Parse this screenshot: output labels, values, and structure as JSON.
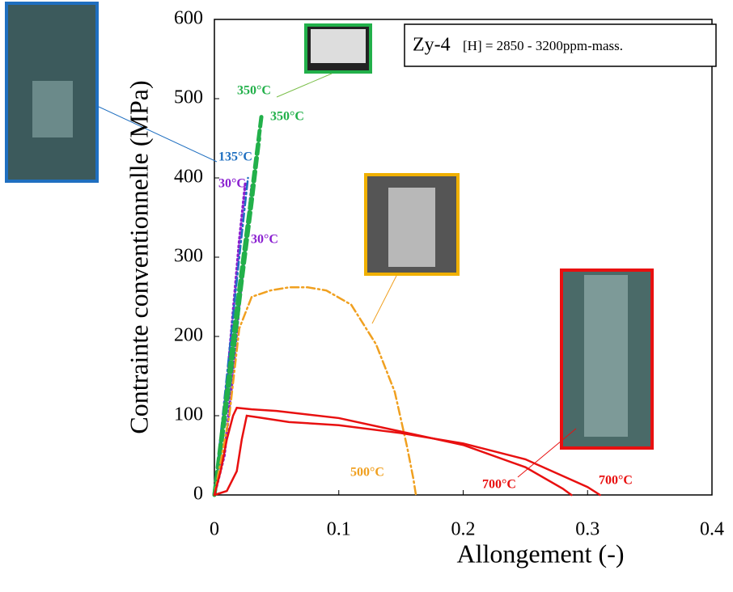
{
  "chart_data": {
    "type": "line",
    "xlabel": "Allongement (-)",
    "ylabel": "Contrainte conventionnelle (MPa)",
    "annotation_title": "Zy-4",
    "annotation_text": "[H] = 2850 - 3200ppm-mass.",
    "xlim": [
      0,
      0.4
    ],
    "xticks": [
      0,
      0.1,
      0.2,
      0.3,
      0.4
    ],
    "ylim": [
      0,
      600
    ],
    "yticks": [
      0,
      100,
      200,
      300,
      400,
      500,
      600
    ],
    "series": [
      {
        "name": "30°C",
        "color": "#8a1fd0",
        "linestyle": "dotted",
        "x": [
          0,
          0.005,
          0.01,
          0.015,
          0.02,
          0.025
        ],
        "values": [
          0,
          60,
          140,
          230,
          320,
          395
        ]
      },
      {
        "name": "30°C",
        "color": "#8a1fd0",
        "linestyle": "dotted",
        "x": [
          0,
          0.008,
          0.014,
          0.02,
          0.026,
          0.03
        ],
        "values": [
          0,
          50,
          140,
          240,
          330,
          390
        ]
      },
      {
        "name": "135°C",
        "color": "#1f6fc0",
        "linestyle": "dashdot",
        "x": [
          0,
          0.01,
          0.02,
          0.027
        ],
        "values": [
          0,
          150,
          300,
          400
        ]
      },
      {
        "name": "350°C",
        "color": "#22b04a",
        "linestyle": "dashed",
        "x": [
          0,
          0.01,
          0.02,
          0.03,
          0.038
        ],
        "values": [
          0,
          130,
          260,
          380,
          480
        ]
      },
      {
        "name": "350°C",
        "color": "#22b04a",
        "linestyle": "dashed",
        "x": [
          0,
          0.012,
          0.022,
          0.03,
          0.036
        ],
        "values": [
          0,
          140,
          270,
          370,
          450
        ]
      },
      {
        "name": "500°C",
        "color": "#f0a020",
        "linestyle": "dashdot",
        "x": [
          0,
          0.012,
          0.02,
          0.03,
          0.045,
          0.06,
          0.075,
          0.09,
          0.11,
          0.13,
          0.145,
          0.155,
          0.16,
          0.162
        ],
        "values": [
          0,
          100,
          210,
          250,
          258,
          262,
          262,
          258,
          240,
          190,
          130,
          60,
          20,
          0
        ]
      },
      {
        "name": "700°C",
        "color": "#e81010",
        "linestyle": "solid",
        "x": [
          0,
          0.005,
          0.01,
          0.015,
          0.018,
          0.03,
          0.05,
          0.1,
          0.15,
          0.2,
          0.25,
          0.28,
          0.287
        ],
        "values": [
          0,
          30,
          70,
          100,
          110,
          108,
          106,
          97,
          80,
          63,
          35,
          8,
          0
        ]
      },
      {
        "name": "700°C",
        "color": "#e81010",
        "linestyle": "solid",
        "x": [
          0,
          0.01,
          0.018,
          0.022,
          0.026,
          0.035,
          0.06,
          0.1,
          0.15,
          0.2,
          0.25,
          0.3,
          0.31
        ],
        "values": [
          0,
          5,
          30,
          70,
          100,
          98,
          92,
          88,
          78,
          65,
          45,
          10,
          0
        ]
      }
    ]
  }
}
